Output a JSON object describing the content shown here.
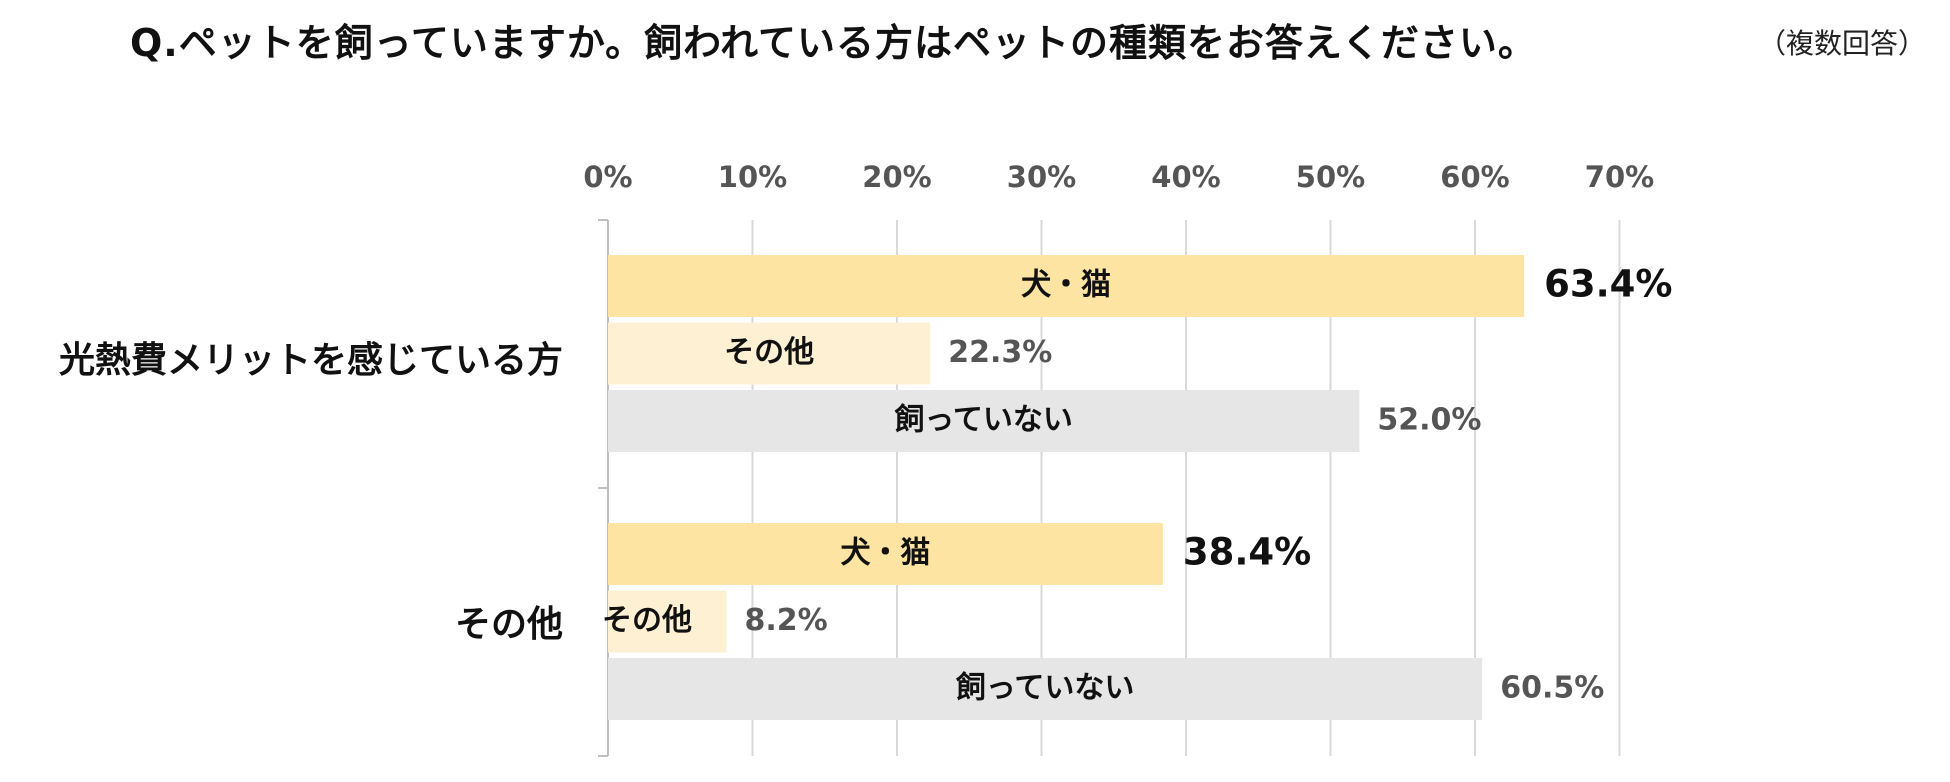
{
  "chart_data": {
    "type": "bar",
    "orientation": "horizontal",
    "title": "Q.ペットを飼っていますか。飼われている方はペットの種類をお答えください。",
    "subtitle": "（複数回答）",
    "xlim": [
      0,
      70
    ],
    "xticks": [
      "0%",
      "10%",
      "20%",
      "30%",
      "40%",
      "50%",
      "60%",
      "70%"
    ],
    "grid": true,
    "unit": "%",
    "groups": [
      {
        "label": "光熱費メリットを感じている方",
        "bars": [
          {
            "name": "犬・猫",
            "value": 63.4,
            "value_label": "63.4%",
            "color": "#FDE4A2"
          },
          {
            "name": "その他",
            "value": 22.3,
            "value_label": "22.3%",
            "color": "#FEF0D3"
          },
          {
            "name": "飼っていない",
            "value": 52.0,
            "value_label": "52.0%",
            "color": "#E6E6E6"
          }
        ]
      },
      {
        "label": "その他",
        "bars": [
          {
            "name": "犬・猫",
            "value": 38.4,
            "value_label": "38.4%",
            "color": "#FDE4A2"
          },
          {
            "name": "その他",
            "value": 8.2,
            "value_label": "8.2%",
            "color": "#FEF0D3"
          },
          {
            "name": "飼っていない",
            "value": 60.5,
            "value_label": "60.5%",
            "color": "#E6E6E6"
          }
        ]
      }
    ]
  }
}
